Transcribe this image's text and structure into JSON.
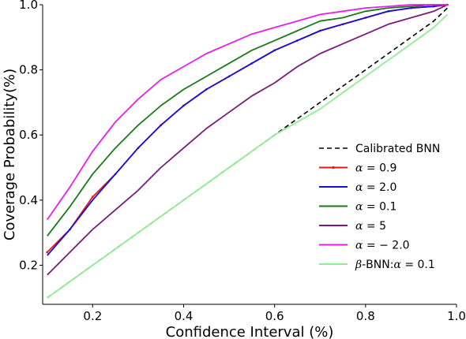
{
  "chart_data": {
    "type": "line",
    "xlabel": "Confidence Interval (%)",
    "ylabel": "Coverage Probability(%)",
    "xlim": [
      0.09,
      1.0
    ],
    "ylim": [
      0.08,
      1.0
    ],
    "x_ticks": [
      0.2,
      0.4,
      0.6,
      0.8,
      1.0
    ],
    "x_tick_labels": [
      "0.2",
      "0.4",
      "0.6",
      "0.8",
      "1.0"
    ],
    "y_ticks": [
      0.2,
      0.4,
      0.6,
      0.8,
      1.0
    ],
    "y_tick_labels": [
      "0.2",
      "0.4",
      "0.6",
      "0.8",
      "1.0"
    ],
    "grid": false,
    "legend_position": "lower-right",
    "x": [
      0.1,
      0.15,
      0.2,
      0.25,
      0.3,
      0.35,
      0.4,
      0.45,
      0.5,
      0.55,
      0.6,
      0.65,
      0.7,
      0.75,
      0.8,
      0.85,
      0.9,
      0.95,
      0.98
    ],
    "series": [
      {
        "name": "Calibrated BNN",
        "label_parts": [
          {
            "text": "Calibrated BNN",
            "italic": false
          }
        ],
        "color": "#000000",
        "style": "dashed",
        "values": [
          0.1,
          0.15,
          0.2,
          0.25,
          0.3,
          0.35,
          0.4,
          0.45,
          0.5,
          0.55,
          0.6,
          0.65,
          0.7,
          0.75,
          0.8,
          0.85,
          0.9,
          0.95,
          0.99
        ]
      },
      {
        "name": "α = 0.9",
        "label_parts": [
          {
            "text": "α",
            "italic": true
          },
          {
            "text": " = 0.9",
            "italic": false
          }
        ],
        "color": "#e8191b",
        "style": "solid",
        "marker": "dot",
        "values": [
          0.24,
          0.31,
          0.41,
          0.48,
          0.56,
          0.63,
          0.69,
          0.74,
          0.78,
          0.82,
          0.86,
          0.89,
          0.92,
          0.94,
          0.96,
          0.98,
          0.99,
          0.995,
          1.0
        ]
      },
      {
        "name": "α = 2.0",
        "label_parts": [
          {
            "text": "α",
            "italic": true
          },
          {
            "text": " = 2.0",
            "italic": false
          }
        ],
        "color": "#1010e0",
        "style": "solid",
        "values": [
          0.23,
          0.31,
          0.4,
          0.48,
          0.56,
          0.63,
          0.69,
          0.74,
          0.78,
          0.82,
          0.86,
          0.89,
          0.92,
          0.94,
          0.96,
          0.98,
          0.99,
          0.995,
          1.0
        ]
      },
      {
        "name": "α = 0.1",
        "label_parts": [
          {
            "text": "α",
            "italic": true
          },
          {
            "text": " = 0.1",
            "italic": false
          }
        ],
        "color": "#1a7a1a",
        "style": "solid",
        "values": [
          0.29,
          0.38,
          0.48,
          0.56,
          0.63,
          0.69,
          0.74,
          0.78,
          0.82,
          0.86,
          0.89,
          0.92,
          0.95,
          0.96,
          0.98,
          0.99,
          0.995,
          1.0,
          1.0
        ]
      },
      {
        "name": "α = 5",
        "label_parts": [
          {
            "text": "α",
            "italic": true
          },
          {
            "text": " = 5",
            "italic": false
          }
        ],
        "color": "#7a1a7a",
        "style": "solid",
        "values": [
          0.17,
          0.24,
          0.31,
          0.37,
          0.43,
          0.5,
          0.56,
          0.62,
          0.67,
          0.72,
          0.76,
          0.81,
          0.85,
          0.88,
          0.91,
          0.94,
          0.96,
          0.98,
          1.0
        ]
      },
      {
        "name": "α = −2.0",
        "label_parts": [
          {
            "text": "α",
            "italic": true
          },
          {
            "text": " = − 2.0",
            "italic": false
          }
        ],
        "color": "#e81ee8",
        "style": "solid",
        "values": [
          0.34,
          0.44,
          0.55,
          0.64,
          0.71,
          0.77,
          0.81,
          0.85,
          0.88,
          0.91,
          0.93,
          0.95,
          0.97,
          0.98,
          0.99,
          0.995,
          1.0,
          1.0,
          1.0
        ]
      },
      {
        "name": "β-BNN:α = 0.1",
        "label_parts": [
          {
            "text": "β",
            "italic": true
          },
          {
            "text": "-BNN:",
            "italic": false
          },
          {
            "text": "α",
            "italic": true
          },
          {
            "text": " = 0.1",
            "italic": false
          }
        ],
        "color": "#90ee90",
        "style": "solid",
        "values": [
          0.1,
          0.15,
          0.2,
          0.25,
          0.3,
          0.35,
          0.4,
          0.45,
          0.5,
          0.55,
          0.6,
          0.64,
          0.68,
          0.73,
          0.78,
          0.83,
          0.88,
          0.93,
          0.97
        ]
      }
    ]
  }
}
